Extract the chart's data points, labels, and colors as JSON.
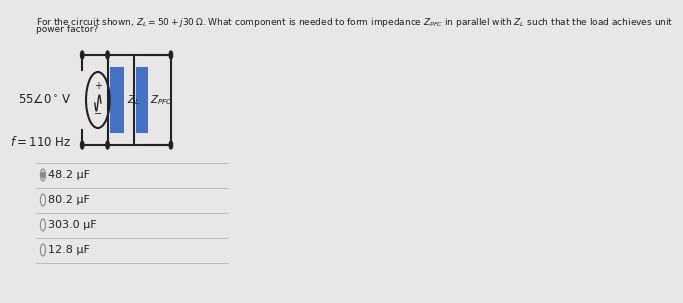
{
  "bg_color": "#e8e6e6",
  "wire_color": "#222222",
  "text_color": "#222222",
  "box_color": "#4472c4",
  "title_line1": "For the circuit shown, $Z_L = 50 + j30\\,\\Omega$. What component is needed to form impedance $Z_{PFC}$ in parallel with $Z_L$ such that the load achieves unit",
  "title_line2": "power factor?",
  "voltage_label": "$55\\angle 0^\\circ\\!$ V",
  "freq_label": "$f = 110$ Hz",
  "zl_label": "$Z_L$",
  "zpfc_label": "$Z_{PFC}$",
  "choices": [
    "48.2 μF",
    "80.2 μF",
    "303.0 μF",
    "12.8 μF"
  ],
  "title_fontsize": 6.5,
  "body_fontsize": 8.5,
  "choice_fontsize": 8.0
}
